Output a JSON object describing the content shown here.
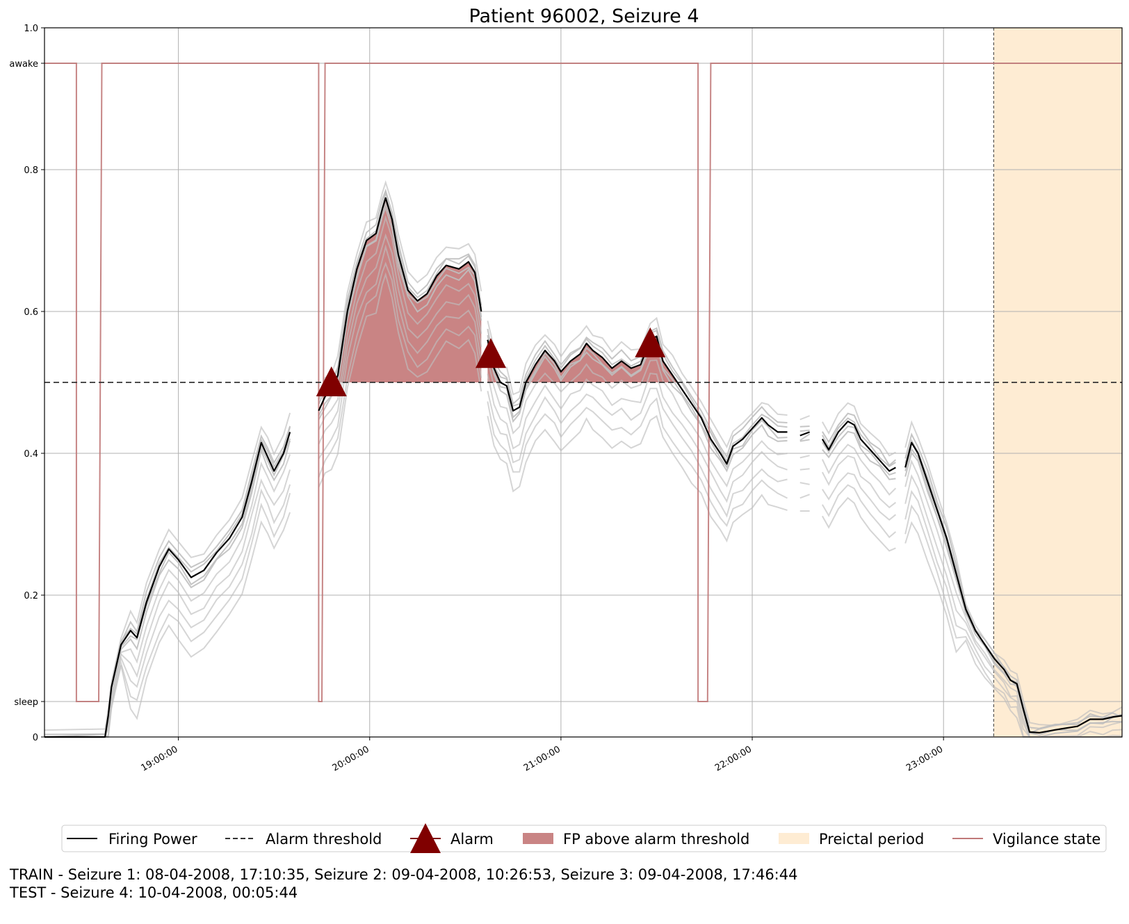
{
  "chart_data": {
    "type": "line",
    "title": "Patient 96002, Seizure 4",
    "xlabel": "",
    "ylabel": "",
    "xlim": [
      "18:18:00",
      "23:56:00"
    ],
    "ylim": [
      0,
      1
    ],
    "grid": true,
    "x_ticks": [
      "19:00:00",
      "20:00:00",
      "21:00:00",
      "22:00:00",
      "23:00:00"
    ],
    "y_ticks": [
      "0",
      "sleep",
      "0.2",
      "0.4",
      "0.6",
      "0.8",
      "awake",
      "1.0"
    ],
    "y_tick_values": [
      0,
      0.05,
      0.2,
      0.4,
      0.6,
      0.8,
      0.95,
      1.0
    ],
    "alarm_threshold": 0.5,
    "colors": {
      "firing_power": "#000000",
      "ensemble_runs": "#bfbfbf",
      "threshold": "#333333",
      "alarm": "#800000",
      "fp_above": "#c98484",
      "preictal": "#feecd3",
      "vigilance": "#c07878"
    },
    "series": [
      {
        "name": "Firing Power",
        "points": [
          [
            "18:18",
            0
          ],
          [
            "18:37",
            0
          ],
          [
            "18:38",
            0.03
          ],
          [
            "18:39",
            0.07
          ],
          [
            "18:42",
            0.13
          ],
          [
            "18:45",
            0.15
          ],
          [
            "18:47",
            0.14
          ],
          [
            "18:50",
            0.19
          ],
          [
            "18:54",
            0.24
          ],
          [
            "18:57",
            0.265
          ],
          [
            "19:00",
            0.25
          ],
          [
            "19:04",
            0.225
          ],
          [
            "19:08",
            0.235
          ],
          [
            "19:12",
            0.26
          ],
          [
            "19:16",
            0.28
          ],
          [
            "19:20",
            0.31
          ],
          [
            "19:23",
            0.36
          ],
          [
            "19:26",
            0.415
          ],
          [
            "19:28",
            0.395
          ],
          [
            "19:30",
            0.375
          ],
          [
            "19:33",
            0.4
          ],
          [
            "19:35",
            0.43
          ],
          null,
          [
            "19:44",
            0.46
          ],
          [
            "19:46",
            0.48
          ],
          [
            "19:48",
            0.49
          ],
          [
            "19:50",
            0.51
          ],
          [
            "19:53",
            0.6
          ],
          [
            "19:56",
            0.66
          ],
          [
            "19:59",
            0.7
          ],
          [
            "20:02",
            0.71
          ],
          [
            "20:04",
            0.745
          ],
          [
            "20:05",
            0.76
          ],
          [
            "20:07",
            0.73
          ],
          [
            "20:09",
            0.68
          ],
          [
            "20:12",
            0.63
          ],
          [
            "20:15",
            0.615
          ],
          [
            "20:18",
            0.625
          ],
          [
            "20:21",
            0.65
          ],
          [
            "20:24",
            0.665
          ],
          [
            "20:28",
            0.66
          ],
          [
            "20:31",
            0.67
          ],
          [
            "20:33",
            0.655
          ],
          [
            "20:35",
            0.6
          ],
          null,
          [
            "20:37",
            0.56
          ],
          [
            "20:39",
            0.52
          ],
          [
            "20:41",
            0.5
          ],
          [
            "20:43",
            0.495
          ],
          [
            "20:45",
            0.46
          ],
          [
            "20:47",
            0.465
          ],
          [
            "20:49",
            0.5
          ],
          [
            "20:52",
            0.525
          ],
          [
            "20:55",
            0.545
          ],
          [
            "20:58",
            0.53
          ],
          [
            "21:00",
            0.515
          ],
          [
            "21:03",
            0.53
          ],
          [
            "21:06",
            0.54
          ],
          [
            "21:08",
            0.555
          ],
          [
            "21:10",
            0.545
          ],
          [
            "21:13",
            0.535
          ],
          [
            "21:16",
            0.52
          ],
          [
            "21:19",
            0.53
          ],
          [
            "21:22",
            0.52
          ],
          [
            "21:25",
            0.525
          ],
          [
            "21:28",
            0.56
          ],
          [
            "21:30",
            0.565
          ],
          [
            "21:32",
            0.53
          ],
          [
            "21:35",
            0.51
          ],
          [
            "21:38",
            0.49
          ],
          [
            "21:41",
            0.47
          ],
          [
            "21:44",
            0.45
          ],
          [
            "21:47",
            0.42
          ],
          [
            "21:50",
            0.4
          ],
          [
            "21:52",
            0.385
          ],
          [
            "21:54",
            0.41
          ],
          [
            "21:57",
            0.42
          ],
          [
            "22:00",
            0.435
          ],
          [
            "22:03",
            0.45
          ],
          [
            "22:05",
            0.44
          ],
          [
            "22:08",
            0.43
          ],
          [
            "22:11",
            0.43
          ],
          null,
          [
            "22:15",
            0.425
          ],
          [
            "22:18",
            0.43
          ],
          null,
          [
            "22:22",
            0.42
          ],
          [
            "22:24",
            0.405
          ],
          [
            "22:27",
            0.43
          ],
          [
            "22:30",
            0.445
          ],
          [
            "22:32",
            0.44
          ],
          [
            "22:34",
            0.42
          ],
          [
            "22:37",
            0.405
          ],
          [
            "22:40",
            0.39
          ],
          [
            "22:43",
            0.375
          ],
          [
            "22:45",
            0.38
          ],
          null,
          [
            "22:48",
            0.38
          ],
          [
            "22:50",
            0.415
          ],
          [
            "22:52",
            0.4
          ],
          [
            "22:55",
            0.36
          ],
          [
            "22:58",
            0.32
          ],
          [
            "23:01",
            0.28
          ],
          [
            "23:04",
            0.23
          ],
          [
            "23:07",
            0.18
          ],
          [
            "23:10",
            0.15
          ],
          [
            "23:13",
            0.13
          ],
          [
            "23:16",
            0.11
          ],
          [
            "23:19",
            0.095
          ],
          [
            "23:21",
            0.08
          ],
          [
            "23:23",
            0.075
          ],
          [
            "23:25",
            0.04
          ],
          [
            "23:27",
            0.007
          ],
          [
            "23:30",
            0.006
          ],
          [
            "23:35",
            0.01
          ],
          [
            "23:42",
            0.015
          ],
          [
            "23:46",
            0.025
          ],
          [
            "23:50",
            0.025
          ],
          [
            "23:53",
            0.028
          ],
          [
            "23:56",
            0.03
          ]
        ]
      },
      {
        "name": "Vigilance state",
        "points": [
          [
            "18:18",
            "awake"
          ],
          [
            "18:28",
            "awake"
          ],
          [
            "18:28",
            "sleep"
          ],
          [
            "18:35",
            "sleep"
          ],
          [
            "18:36",
            "awake"
          ],
          [
            "19:44",
            "awake"
          ],
          [
            "19:44",
            "sleep"
          ],
          [
            "19:45",
            "sleep"
          ],
          [
            "19:46",
            "awake"
          ],
          [
            "21:43",
            "awake"
          ],
          [
            "21:43",
            "sleep"
          ],
          [
            "21:46",
            "sleep"
          ],
          [
            "21:47",
            "awake"
          ],
          [
            "23:56",
            "awake"
          ]
        ]
      }
    ],
    "alarms": [
      {
        "time": "19:48",
        "value": 0.5
      },
      {
        "time": "20:38",
        "value": 0.54
      },
      {
        "time": "21:28",
        "value": 0.555
      }
    ],
    "preictal_period": [
      "23:15:44",
      "23:56:00"
    ],
    "legend": {
      "placement": "bottom",
      "entries": [
        "Firing Power",
        "Alarm threshold",
        "Alarm",
        "FP above alarm threshold",
        "Preictal period",
        "Vigilance state"
      ]
    }
  },
  "footer": {
    "train": "TRAIN - Seizure 1: 08-04-2008, 17:10:35, Seizure 2: 09-04-2008, 10:26:53, Seizure 3: 09-04-2008, 17:46:44",
    "test": "TEST - Seizure 4: 10-04-2008, 00:05:44"
  }
}
